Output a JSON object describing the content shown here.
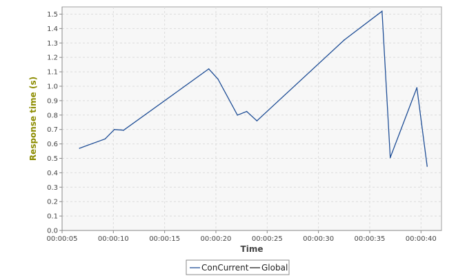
{
  "chart_data": {
    "type": "line",
    "title": "",
    "xlabel": "Time",
    "ylabel": "Response time (s)",
    "x_unit": "time (hh:mm:ss)",
    "xlim": [
      "00:00:05",
      "00:00:42"
    ],
    "ylim": [
      0,
      1.55
    ],
    "x_ticks": [
      "00:00:05",
      "00:00:10",
      "00:00:15",
      "00:00:20",
      "00:00:25",
      "00:00:30",
      "00:00:35",
      "00:00:40"
    ],
    "y_ticks": [
      "0.0",
      "0.1",
      "0.2",
      "0.3",
      "0.4",
      "0.5",
      "0.6",
      "0.7",
      "0.8",
      "0.9",
      "1.0",
      "1.1",
      "1.2",
      "1.3",
      "1.4",
      "1.5"
    ],
    "grid": true,
    "legend_position": "bottom-center",
    "series": [
      {
        "name": "ConCurrent",
        "color": "#1f4e96",
        "x": [
          "00:00:06.7",
          "00:00:09.2",
          "00:00:10.1",
          "00:00:11.0",
          "00:00:19.3",
          "00:00:20.2",
          "00:00:22.1",
          "00:00:23.0",
          "00:00:24.0",
          "00:00:32.5",
          "00:00:36.2",
          "00:00:37.0",
          "00:00:39.6",
          "00:00:40.6"
        ],
        "y": [
          0.57,
          0.635,
          0.7,
          0.695,
          1.12,
          1.05,
          0.8,
          0.825,
          0.76,
          1.32,
          1.52,
          0.505,
          0.99,
          0.445
        ]
      },
      {
        "name": "Global",
        "color": "#222222",
        "x": [],
        "y": []
      }
    ],
    "ylabel_color": "#8c8c00",
    "plot_background": "#f7f7f7"
  }
}
